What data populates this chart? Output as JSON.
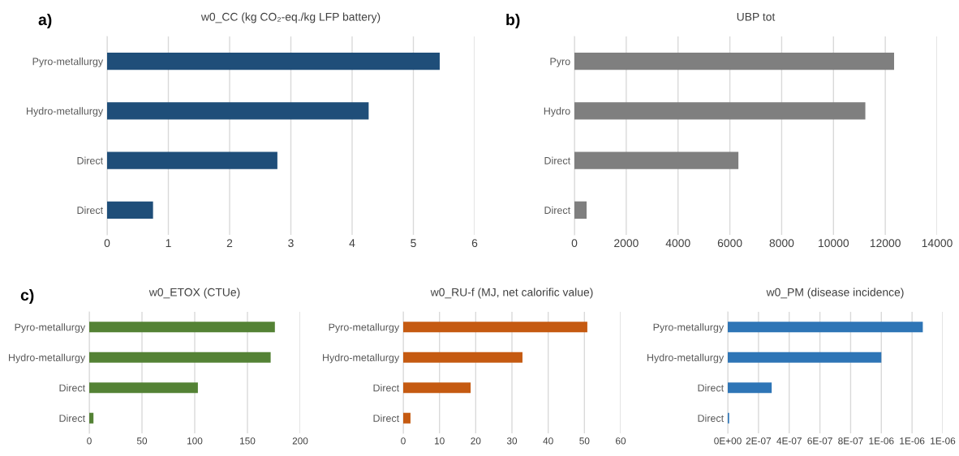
{
  "chart_data": [
    {
      "type": "bar",
      "orientation": "horizontal",
      "title": "w0_CC (kg CO₂-eq./kg LFP battery)",
      "annotations": [
        "a)"
      ],
      "categories": [
        "Pyro-metallurgy",
        "Hydro-metallurgy",
        "Direct",
        "Direct"
      ],
      "values": [
        5.43,
        4.27,
        2.78,
        0.75
      ],
      "color": "#1f4e79",
      "xlim": [
        0,
        6
      ],
      "xticks": [
        0,
        1,
        2,
        3,
        4,
        5,
        6
      ],
      "grid": "x"
    },
    {
      "type": "bar",
      "orientation": "horizontal",
      "title": "UBP tot",
      "annotations": [
        "b)"
      ],
      "categories": [
        "Pyro",
        "Hydro",
        "Direct",
        "Direct"
      ],
      "values": [
        12340,
        11230,
        6330,
        470
      ],
      "color": "#7f7f7f",
      "xlim": [
        0,
        14000
      ],
      "xticks": [
        0,
        2000,
        4000,
        6000,
        8000,
        10000,
        12000,
        14000
      ],
      "grid": "x"
    },
    {
      "type": "bar",
      "orientation": "horizontal",
      "title": "w0_ETOX (CTUe)",
      "annotations": [
        "c)"
      ],
      "categories": [
        "Pyro-metallurgy",
        "Hydro-metallurgy",
        "Direct",
        "Direct"
      ],
      "values": [
        176,
        172,
        103,
        4
      ],
      "color": "#548235",
      "xlim": [
        0,
        200
      ],
      "xticks": [
        0,
        50,
        100,
        150,
        200
      ],
      "grid": "x"
    },
    {
      "type": "bar",
      "orientation": "horizontal",
      "title": "w0_RU-f (MJ, net calorific value)",
      "categories": [
        "Pyro-metallurgy",
        "Hydro-metallurgy",
        "Direct",
        "Direct"
      ],
      "values": [
        50.8,
        32.9,
        18.6,
        2
      ],
      "color": "#c55a11",
      "xlim": [
        0,
        60
      ],
      "xticks": [
        0,
        10,
        20,
        30,
        40,
        50,
        60
      ],
      "grid": "x"
    },
    {
      "type": "bar",
      "orientation": "horizontal",
      "title": "w0_PM (disease incidence)",
      "categories": [
        "Pyro-metallurgy",
        "Hydro-metallurgy",
        "Direct",
        "Direct"
      ],
      "values": [
        1.27e-06,
        1e-06,
        2.86e-07,
        9e-09
      ],
      "color": "#2e75b6",
      "xlim": [
        0,
        1.4e-06
      ],
      "xticks": [
        {
          "value": 0,
          "label": "0E+00"
        },
        {
          "value": 2e-07,
          "label": "2E-07"
        },
        {
          "value": 4e-07,
          "label": "4E-07"
        },
        {
          "value": 6e-07,
          "label": "6E-07"
        },
        {
          "value": 8e-07,
          "label": "8E-07"
        },
        {
          "value": 1e-06,
          "label": "1E-06"
        },
        {
          "value": 1.2e-06,
          "label": "1E-06"
        },
        {
          "value": 1.4e-06,
          "label": "1E-06"
        }
      ],
      "grid": "x"
    }
  ]
}
